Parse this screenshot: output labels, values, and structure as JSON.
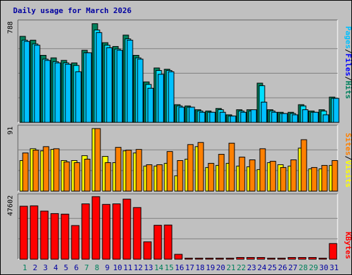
{
  "title": "Daily usage for March 2026",
  "colors": {
    "hits": "#00805c",
    "files": "#00e0ff",
    "pages": "#00c0ff",
    "visits": "#ffff00",
    "sites": "#ff8000",
    "kbytes": "#ff0000",
    "label_hits": "#00805c",
    "label_files": "#0000ff",
    "label_pages": "#00c0ff",
    "label_sites": "#ff8000",
    "label_visits": "#ffff00",
    "label_kbytes": "#ff0000",
    "weekend_day": "#00805c",
    "weekday": "#0000a0"
  },
  "right_labels": {
    "pages": "Pages",
    "files": "Files",
    "hits": "Hits",
    "sites": "Sites",
    "visits": "Visits",
    "kbytes": "KBytes",
    "sep": "/"
  },
  "chart_data": [
    {
      "type": "bar",
      "panel": "hits-files-pages",
      "ymax_label": "788",
      "ylim": [
        0,
        788
      ],
      "categories": [
        "1",
        "2",
        "3",
        "4",
        "5",
        "6",
        "7",
        "8",
        "9",
        "10",
        "11",
        "12",
        "13",
        "14",
        "15",
        "16",
        "17",
        "18",
        "19",
        "20",
        "21",
        "22",
        "23",
        "24",
        "25",
        "26",
        "27",
        "28",
        "29",
        "30",
        "31"
      ],
      "weekend_days": [
        "1",
        "7",
        "8",
        "14",
        "15",
        "21",
        "22",
        "28",
        "29"
      ],
      "series": [
        {
          "name": "Hits",
          "values": [
            680,
            650,
            530,
            510,
            490,
            470,
            570,
            780,
            630,
            600,
            690,
            530,
            320,
            430,
            420,
            140,
            130,
            100,
            90,
            110,
            60,
            100,
            100,
            310,
            100,
            80,
            80,
            140,
            90,
            100,
            200
          ]
        },
        {
          "name": "Files",
          "values": [
            650,
            620,
            500,
            480,
            470,
            450,
            550,
            730,
            610,
            580,
            660,
            510,
            300,
            410,
            410,
            130,
            120,
            90,
            80,
            100,
            50,
            90,
            90,
            290,
            90,
            70,
            70,
            130,
            80,
            90,
            190
          ]
        },
        {
          "name": "Pages",
          "values": [
            640,
            610,
            490,
            470,
            460,
            400,
            550,
            710,
            590,
            570,
            650,
            500,
            270,
            380,
            400,
            120,
            120,
            80,
            80,
            80,
            50,
            80,
            100,
            160,
            80,
            70,
            60,
            100,
            80,
            60,
            190
          ]
        }
      ]
    },
    {
      "type": "bar",
      "panel": "visits-sites",
      "ymax_label": "91",
      "ylim": [
        0,
        91
      ],
      "categories": [
        "1",
        "2",
        "3",
        "4",
        "5",
        "6",
        "7",
        "8",
        "9",
        "10",
        "11",
        "12",
        "13",
        "14",
        "15",
        "16",
        "17",
        "18",
        "19",
        "20",
        "21",
        "22",
        "23",
        "24",
        "25",
        "26",
        "27",
        "28",
        "29",
        "30",
        "31"
      ],
      "series": [
        {
          "name": "Visits",
          "values": [
            44,
            61,
            58,
            60,
            44,
            44,
            51,
            90,
            50,
            41,
            58,
            55,
            36,
            36,
            40,
            22,
            46,
            64,
            34,
            37,
            40,
            36,
            35,
            31,
            41,
            38,
            36,
            62,
            32,
            32,
            37
          ]
        },
        {
          "name": "Sites",
          "values": [
            55,
            59,
            64,
            61,
            42,
            41,
            46,
            90,
            41,
            63,
            59,
            60,
            38,
            38,
            57,
            44,
            67,
            70,
            40,
            53,
            69,
            49,
            45,
            61,
            43,
            34,
            45,
            74,
            34,
            37,
            44
          ]
        }
      ]
    },
    {
      "type": "bar",
      "panel": "kbytes",
      "ymax_label": "47602",
      "ylim": [
        0,
        47602
      ],
      "categories": [
        "1",
        "2",
        "3",
        "4",
        "5",
        "6",
        "7",
        "8",
        "9",
        "10",
        "11",
        "12",
        "13",
        "14",
        "15",
        "16",
        "17",
        "18",
        "19",
        "20",
        "21",
        "22",
        "23",
        "24",
        "25",
        "26",
        "27",
        "28",
        "29",
        "30",
        "31"
      ],
      "series": [
        {
          "name": "KBytes",
          "values": [
            40300,
            40600,
            36600,
            34700,
            34300,
            25600,
            42100,
            47600,
            41700,
            42100,
            45700,
            39300,
            13200,
            25800,
            26000,
            3700,
            800,
            800,
            800,
            800,
            800,
            1300,
            1300,
            1300,
            800,
            800,
            1300,
            1300,
            1300,
            800,
            11900
          ]
        }
      ]
    }
  ]
}
